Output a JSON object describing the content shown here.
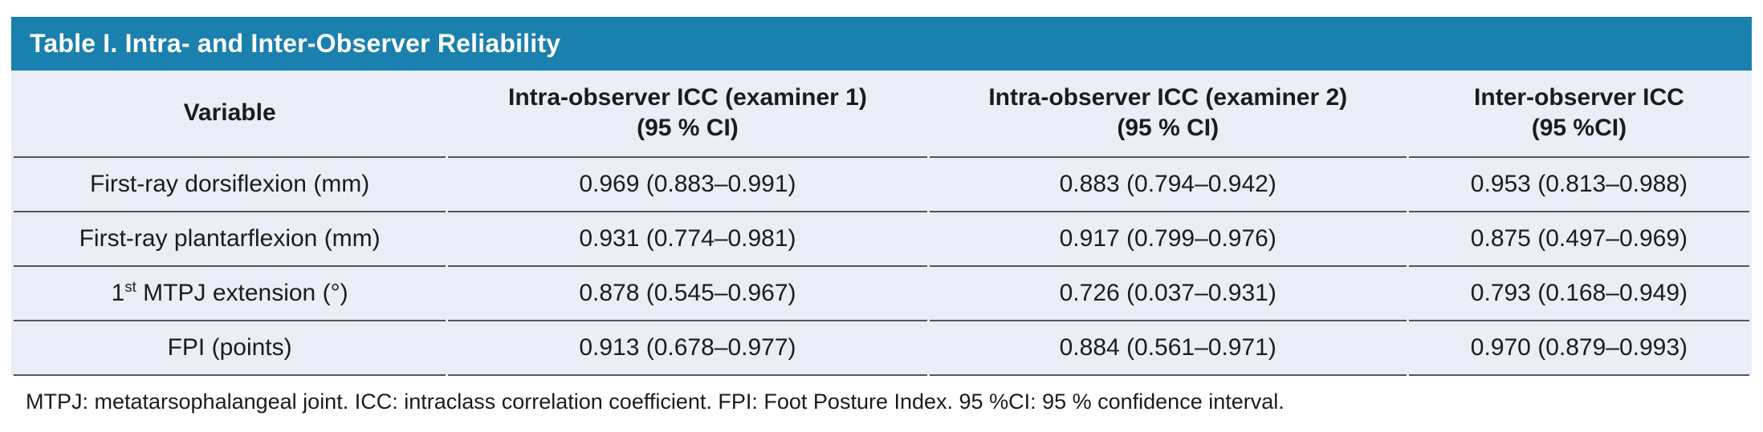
{
  "title": "Table I. Intra- and Inter-Observer Reliability",
  "colors": {
    "header_bar": "#1a80ad",
    "title_text": "#ffffff",
    "row_bg": "#e9eef7",
    "rule": "#53565b"
  },
  "table": {
    "columns": [
      {
        "line1": "Variable",
        "line2": ""
      },
      {
        "line1": "Intra-observer ICC (examiner 1)",
        "line2": "(95 % CI)"
      },
      {
        "line1": "Intra-observer ICC (examiner 2)",
        "line2": "(95 % CI)"
      },
      {
        "line1": "Inter-observer ICC",
        "line2": "(95 %CI)"
      }
    ],
    "rows": [
      {
        "variable": {
          "pre": "First-ray dorsiflexion (mm)",
          "sup": "",
          "post": ""
        },
        "icc_examiner1": "0.969 (0.883–0.991)",
        "icc_examiner2": "0.883 (0.794–0.942)",
        "inter_icc": "0.953 (0.813–0.988)"
      },
      {
        "variable": {
          "pre": "First-ray plantarflexion (mm)",
          "sup": "",
          "post": ""
        },
        "icc_examiner1": "0.931 (0.774–0.981)",
        "icc_examiner2": "0.917 (0.799–0.976)",
        "inter_icc": "0.875 (0.497–0.969)"
      },
      {
        "variable": {
          "pre": "1",
          "sup": "st",
          "post": " MTPJ extension (°)"
        },
        "icc_examiner1": "0.878 (0.545–0.967)",
        "icc_examiner2": "0.726 (0.037–0.931)",
        "inter_icc": "0.793 (0.168–0.949)"
      },
      {
        "variable": {
          "pre": "FPI (points)",
          "sup": "",
          "post": ""
        },
        "icc_examiner1": "0.913 (0.678–0.977)",
        "icc_examiner2": "0.884 (0.561–0.971)",
        "inter_icc": "0.970 (0.879–0.993)"
      }
    ]
  },
  "footnote": "MTPJ: metatarsophalangeal joint. ICC: intraclass correlation coefficient. FPI: Foot Posture Index. 95 %CI: 95 % confidence interval."
}
